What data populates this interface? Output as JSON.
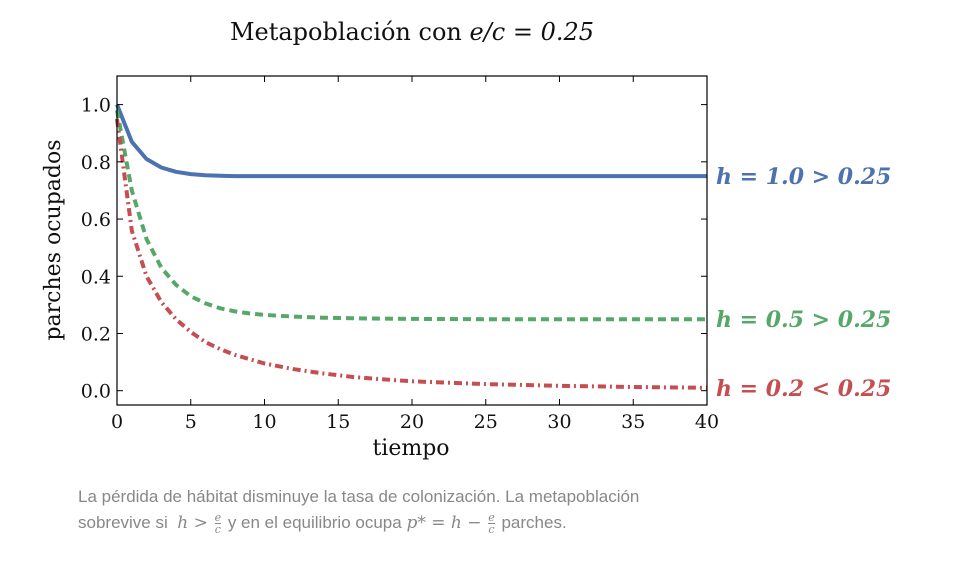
{
  "chart_data": {
    "type": "line",
    "title": "Metapoblación con e/c = 0.25",
    "title_prefix": "Metapoblación con ",
    "title_math": "e/c = 0.25",
    "xlabel": "tiempo",
    "ylabel": "parches ocupados",
    "xlim": [
      0,
      40
    ],
    "ylim": [
      -0.05,
      1.1
    ],
    "xticks": [
      "0",
      "5",
      "10",
      "15",
      "20",
      "25",
      "30",
      "35",
      "40"
    ],
    "yticks": [
      "0.0",
      "0.2",
      "0.4",
      "0.6",
      "0.8",
      "1.0"
    ],
    "grid": false,
    "x": [
      0,
      1,
      2,
      3,
      4,
      5,
      6,
      7,
      8,
      9,
      10,
      12,
      14,
      16,
      18,
      20,
      25,
      30,
      35,
      40
    ],
    "series": [
      {
        "name": "h = 1.0 > 0.25",
        "color": "#4c72b0",
        "style": "solid",
        "values": [
          1.0,
          0.87,
          0.81,
          0.78,
          0.765,
          0.757,
          0.753,
          0.751,
          0.75,
          0.75,
          0.75,
          0.75,
          0.75,
          0.75,
          0.75,
          0.75,
          0.75,
          0.75,
          0.75,
          0.75
        ]
      },
      {
        "name": "h = 0.5 > 0.25",
        "color": "#55a868",
        "style": "dashed",
        "values": [
          0.98,
          0.7,
          0.53,
          0.43,
          0.37,
          0.33,
          0.305,
          0.288,
          0.277,
          0.27,
          0.265,
          0.259,
          0.255,
          0.253,
          0.252,
          0.251,
          0.25,
          0.25,
          0.25,
          0.25
        ]
      },
      {
        "name": "h = 0.2 < 0.25",
        "color": "#c44e52",
        "style": "dashdot",
        "values": [
          0.95,
          0.56,
          0.4,
          0.31,
          0.25,
          0.205,
          0.17,
          0.145,
          0.125,
          0.11,
          0.095,
          0.075,
          0.06,
          0.048,
          0.04,
          0.033,
          0.023,
          0.017,
          0.013,
          0.01
        ]
      }
    ],
    "caption": {
      "line1": "La pérdida de hábitat disminuye la tasa de colonización. La metapoblación",
      "line2_a": "sobrevive si",
      "cond_lhs": "h >",
      "frac_num": "e",
      "frac_den": "c",
      "line2_b": "y en el equilibrio ocupa",
      "eq_lhs": "p* = h −",
      "line2_c": "parches."
    }
  }
}
